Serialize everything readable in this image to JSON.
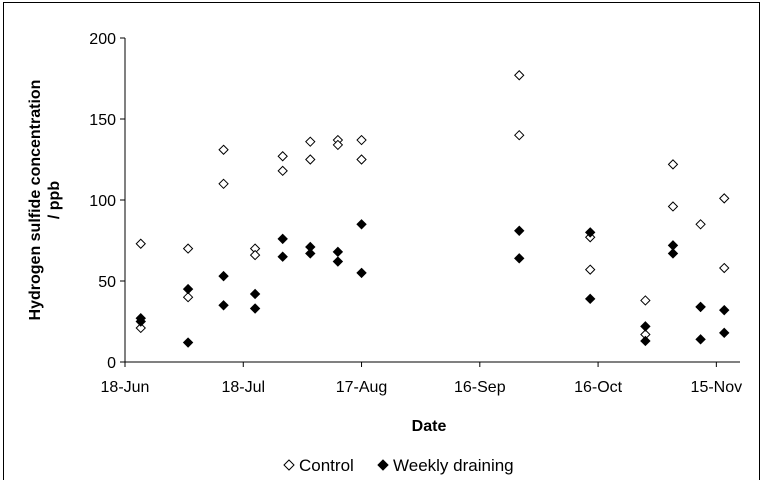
{
  "chart_data": {
    "type": "scatter",
    "title": "",
    "xlabel": "Date",
    "ylabel": "Hydrogen sulfide concentration / ppb",
    "ylim": [
      0,
      200
    ],
    "y_ticks": [
      0,
      50,
      100,
      150,
      200
    ],
    "x_ticks": [
      {
        "label": "18-Jun",
        "date": "2010-06-18"
      },
      {
        "label": "18-Jul",
        "date": "2010-07-18"
      },
      {
        "label": "17-Aug",
        "date": "2010-08-17"
      },
      {
        "label": "16-Sep",
        "date": "2010-09-16"
      },
      {
        "label": "16-Oct",
        "date": "2010-10-16"
      },
      {
        "label": "15-Nov",
        "date": "2010-11-15"
      }
    ],
    "xlim": [
      "2010-06-18",
      "2010-11-21"
    ],
    "grid": false,
    "legend": "bottom",
    "series": [
      {
        "name": "Control",
        "marker": "diamond-open",
        "color": "#000000",
        "points": [
          {
            "x": "2010-06-22",
            "y": 73
          },
          {
            "x": "2010-06-22",
            "y": 21
          },
          {
            "x": "2010-07-04",
            "y": 70
          },
          {
            "x": "2010-07-04",
            "y": 40
          },
          {
            "x": "2010-07-13",
            "y": 131
          },
          {
            "x": "2010-07-13",
            "y": 110
          },
          {
            "x": "2010-07-21",
            "y": 70
          },
          {
            "x": "2010-07-21",
            "y": 66
          },
          {
            "x": "2010-07-28",
            "y": 127
          },
          {
            "x": "2010-07-28",
            "y": 118
          },
          {
            "x": "2010-08-04",
            "y": 136
          },
          {
            "x": "2010-08-04",
            "y": 125
          },
          {
            "x": "2010-08-11",
            "y": 137
          },
          {
            "x": "2010-08-11",
            "y": 134
          },
          {
            "x": "2010-08-17",
            "y": 137
          },
          {
            "x": "2010-08-17",
            "y": 125
          },
          {
            "x": "2010-09-26",
            "y": 177
          },
          {
            "x": "2010-09-26",
            "y": 140
          },
          {
            "x": "2010-10-14",
            "y": 77
          },
          {
            "x": "2010-10-14",
            "y": 57
          },
          {
            "x": "2010-10-28",
            "y": 38
          },
          {
            "x": "2010-10-28",
            "y": 17
          },
          {
            "x": "2010-11-04",
            "y": 122
          },
          {
            "x": "2010-11-04",
            "y": 96
          },
          {
            "x": "2010-11-11",
            "y": 85
          },
          {
            "x": "2010-11-11",
            "y": 34
          },
          {
            "x": "2010-11-17",
            "y": 101
          },
          {
            "x": "2010-11-17",
            "y": 58
          }
        ]
      },
      {
        "name": "Weekly draining",
        "marker": "diamond-filled",
        "color": "#000000",
        "points": [
          {
            "x": "2010-06-22",
            "y": 27
          },
          {
            "x": "2010-06-22",
            "y": 25
          },
          {
            "x": "2010-07-04",
            "y": 45
          },
          {
            "x": "2010-07-04",
            "y": 12
          },
          {
            "x": "2010-07-13",
            "y": 53
          },
          {
            "x": "2010-07-13",
            "y": 35
          },
          {
            "x": "2010-07-21",
            "y": 42
          },
          {
            "x": "2010-07-21",
            "y": 33
          },
          {
            "x": "2010-07-28",
            "y": 76
          },
          {
            "x": "2010-07-28",
            "y": 65
          },
          {
            "x": "2010-08-04",
            "y": 71
          },
          {
            "x": "2010-08-04",
            "y": 67
          },
          {
            "x": "2010-08-11",
            "y": 68
          },
          {
            "x": "2010-08-11",
            "y": 62
          },
          {
            "x": "2010-08-17",
            "y": 85
          },
          {
            "x": "2010-08-17",
            "y": 55
          },
          {
            "x": "2010-09-26",
            "y": 81
          },
          {
            "x": "2010-09-26",
            "y": 64
          },
          {
            "x": "2010-10-14",
            "y": 80
          },
          {
            "x": "2010-10-14",
            "y": 39
          },
          {
            "x": "2010-10-28",
            "y": 22
          },
          {
            "x": "2010-10-28",
            "y": 13
          },
          {
            "x": "2010-11-04",
            "y": 72
          },
          {
            "x": "2010-11-04",
            "y": 67
          },
          {
            "x": "2010-11-11",
            "y": 34
          },
          {
            "x": "2010-11-11",
            "y": 14
          },
          {
            "x": "2010-11-17",
            "y": 32
          },
          {
            "x": "2010-11-17",
            "y": 18
          }
        ]
      }
    ]
  }
}
